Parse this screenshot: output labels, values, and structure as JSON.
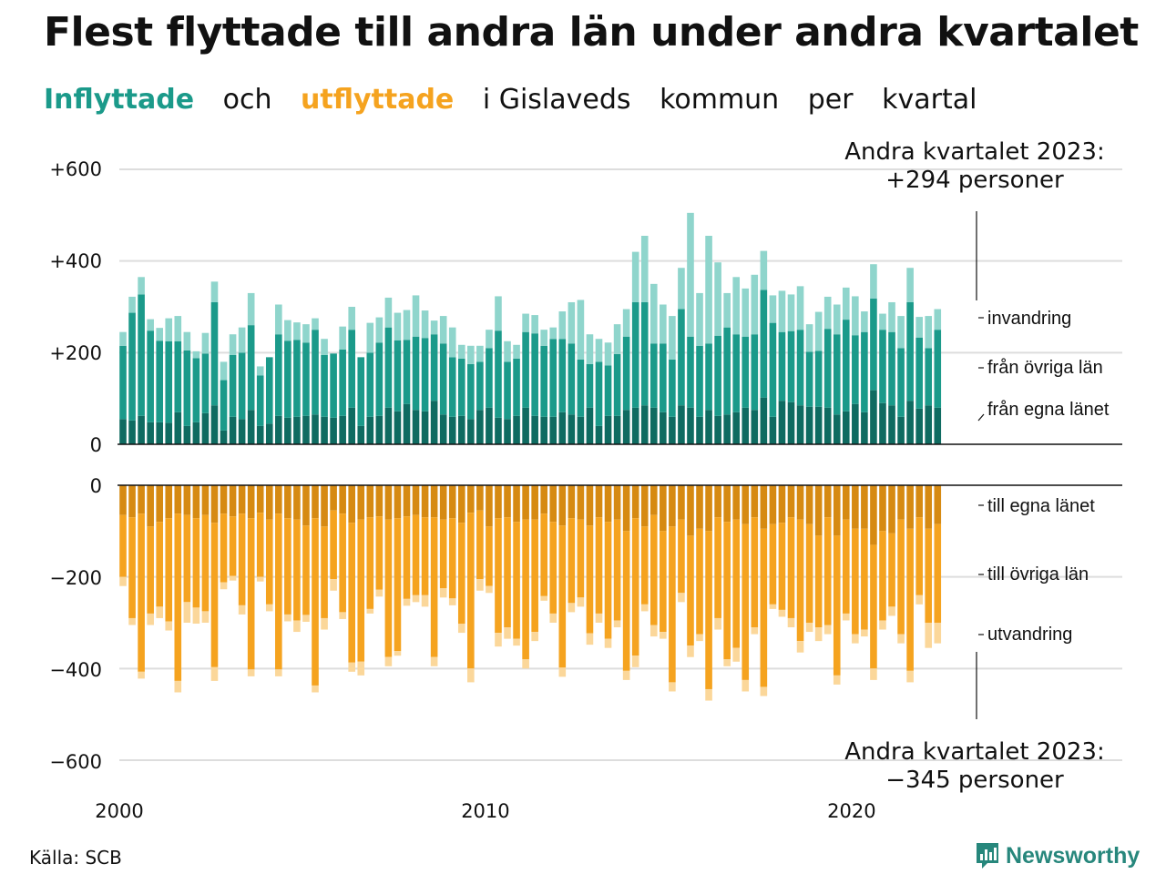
{
  "title": "Flest flyttade till andra län under andra kvartalet",
  "subtitle": {
    "in_word": "Inflyttade",
    "and_word": "och",
    "out_word": "utflyttade",
    "rest": [
      "i Gislaveds",
      "kommun",
      "per",
      "kvartal"
    ]
  },
  "colors": {
    "in_own": "#0f6b61",
    "in_other": "#1b9a8a",
    "in_abroad": "#8fd5cc",
    "out_own": "#d68a12",
    "out_other": "#f5a31f",
    "out_abroad": "#fbd79a",
    "grid": "#dddddd"
  },
  "annotations": {
    "top_line1": "Andra kvartalet 2023:",
    "top_line2": "+294 personer",
    "bottom_line1": "Andra kvartalet 2023:",
    "bottom_line2": "−345 personer"
  },
  "source": "Källa: SCB",
  "brand": {
    "name": "Newsworthy",
    "icon": "chart-bubble-icon"
  },
  "chart_data": {
    "type": "bar",
    "stacked": true,
    "x_start": "2000 Q1",
    "x_ticks": [
      "2000",
      "2010",
      "2020"
    ],
    "y_ticks_top": [
      "+600",
      "+400",
      "+200",
      "0"
    ],
    "y_ticks_bottom": [
      "0",
      "−200",
      "−400",
      "−600"
    ],
    "ylim_top": [
      0,
      600
    ],
    "ylim_bottom": [
      -600,
      0
    ],
    "series_labels": {
      "in_abroad": "invandring",
      "in_other": "från övriga län",
      "in_own": "från egna länet",
      "out_own": "till egna länet",
      "out_other": "till övriga län",
      "out_abroad": "utvandring"
    },
    "inflow": {
      "own": [
        55,
        52,
        62,
        48,
        48,
        47,
        70,
        40,
        48,
        68,
        85,
        30,
        60,
        55,
        75,
        40,
        45,
        62,
        58,
        60,
        62,
        65,
        60,
        58,
        62,
        80,
        40,
        60,
        62,
        80,
        72,
        88,
        75,
        72,
        95,
        65,
        60,
        62,
        55,
        75,
        80,
        58,
        55,
        62,
        80,
        62,
        60,
        60,
        70,
        65,
        60,
        80,
        40,
        62,
        62,
        75,
        80,
        85,
        80,
        70,
        60,
        85,
        80,
        60,
        75,
        62,
        65,
        70,
        80,
        75,
        102,
        60,
        95,
        92,
        85,
        82,
        82,
        80,
        65,
        72,
        88,
        70,
        118,
        90,
        85,
        60,
        95,
        78,
        85,
        80
      ],
      "other": [
        160,
        235,
        265,
        200,
        178,
        178,
        155,
        165,
        140,
        130,
        225,
        110,
        135,
        145,
        185,
        110,
        145,
        178,
        168,
        168,
        160,
        185,
        135,
        140,
        145,
        170,
        150,
        140,
        160,
        175,
        155,
        140,
        160,
        160,
        145,
        155,
        130,
        125,
        120,
        105,
        130,
        190,
        125,
        125,
        165,
        180,
        155,
        170,
        160,
        155,
        125,
        95,
        140,
        110,
        135,
        160,
        230,
        225,
        140,
        150,
        125,
        210,
        155,
        155,
        145,
        175,
        190,
        170,
        155,
        165,
        235,
        205,
        150,
        155,
        165,
        120,
        122,
        172,
        175,
        200,
        150,
        175,
        200,
        160,
        160,
        150,
        215,
        155,
        125,
        170
      ],
      "abroad": [
        30,
        35,
        38,
        25,
        28,
        50,
        55,
        40,
        15,
        45,
        45,
        40,
        45,
        55,
        70,
        20,
        0,
        65,
        45,
        38,
        40,
        25,
        35,
        0,
        50,
        50,
        0,
        65,
        55,
        65,
        60,
        65,
        90,
        60,
        30,
        60,
        65,
        30,
        40,
        35,
        40,
        75,
        45,
        30,
        40,
        40,
        35,
        25,
        60,
        90,
        130,
        65,
        50,
        50,
        65,
        60,
        110,
        145,
        130,
        85,
        95,
        90,
        270,
        115,
        235,
        160,
        75,
        125,
        105,
        130,
        85,
        60,
        90,
        80,
        95,
        60,
        85,
        70,
        65,
        70,
        85,
        45,
        75,
        35,
        65,
        70,
        75,
        45,
        70,
        45
      ]
    },
    "outflow": {
      "own": [
        -65,
        -70,
        -62,
        -90,
        -80,
        -72,
        -62,
        -65,
        -72,
        -65,
        -82,
        -62,
        -68,
        -62,
        -72,
        -60,
        -75,
        -62,
        -72,
        -75,
        -88,
        -72,
        -90,
        -55,
        -62,
        -82,
        -75,
        -70,
        -68,
        -75,
        -72,
        -68,
        -65,
        -70,
        -70,
        -75,
        -72,
        -82,
        -60,
        -55,
        -90,
        -72,
        -70,
        -80,
        -75,
        -75,
        -62,
        -80,
        -88,
        -72,
        -75,
        -88,
        -70,
        -80,
        -75,
        -100,
        -72,
        -90,
        -65,
        -100,
        -90,
        -75,
        -110,
        -95,
        -100,
        -70,
        -80,
        -75,
        -85,
        -70,
        -95,
        -85,
        -82,
        -70,
        -75,
        -85,
        -110,
        -70,
        -110,
        -75,
        -95,
        -95,
        -130,
        -100,
        -105,
        -75,
        -95,
        -70,
        -95,
        -85
      ],
      "other": [
        -135,
        -220,
        -345,
        -190,
        -185,
        -225,
        -365,
        -190,
        -195,
        -210,
        -315,
        -150,
        -130,
        -200,
        -330,
        -140,
        -185,
        -340,
        -210,
        -220,
        -195,
        -365,
        -200,
        -150,
        -215,
        -305,
        -310,
        -200,
        -160,
        -300,
        -290,
        -180,
        -175,
        -170,
        -305,
        -150,
        -175,
        -220,
        -340,
        -150,
        -130,
        -250,
        -240,
        -255,
        -305,
        -245,
        -180,
        -200,
        -310,
        -185,
        -170,
        -235,
        -210,
        -255,
        -220,
        -305,
        -300,
        -170,
        -240,
        -220,
        -340,
        -160,
        -240,
        -230,
        -345,
        -220,
        -300,
        -280,
        -340,
        -240,
        -345,
        -175,
        -190,
        -220,
        -265,
        -215,
        -200,
        -235,
        -305,
        -205,
        -230,
        -220,
        -270,
        -195,
        -160,
        -250,
        -310,
        -170,
        -205,
        -215
      ],
      "abroad": [
        -20,
        -15,
        -15,
        -25,
        -25,
        -20,
        -25,
        -45,
        -35,
        -25,
        -30,
        -15,
        -10,
        -20,
        -15,
        -10,
        -15,
        -15,
        -15,
        -25,
        -15,
        -15,
        -25,
        -25,
        -15,
        -20,
        -30,
        -10,
        -15,
        -20,
        -10,
        -15,
        -15,
        -25,
        -20,
        -20,
        -15,
        -20,
        -30,
        -25,
        -15,
        -30,
        -25,
        -15,
        -20,
        -20,
        -10,
        -20,
        -20,
        -20,
        -20,
        -25,
        -20,
        -20,
        -15,
        -20,
        -25,
        -15,
        -25,
        -15,
        -20,
        -20,
        -25,
        -15,
        -25,
        -25,
        -15,
        -30,
        -25,
        -15,
        -20,
        -10,
        -15,
        -20,
        -25,
        -20,
        -30,
        -20,
        -20,
        -15,
        -20,
        -15,
        -25,
        -20,
        -20,
        -20,
        -25,
        -20,
        -55,
        -45
      ]
    }
  }
}
